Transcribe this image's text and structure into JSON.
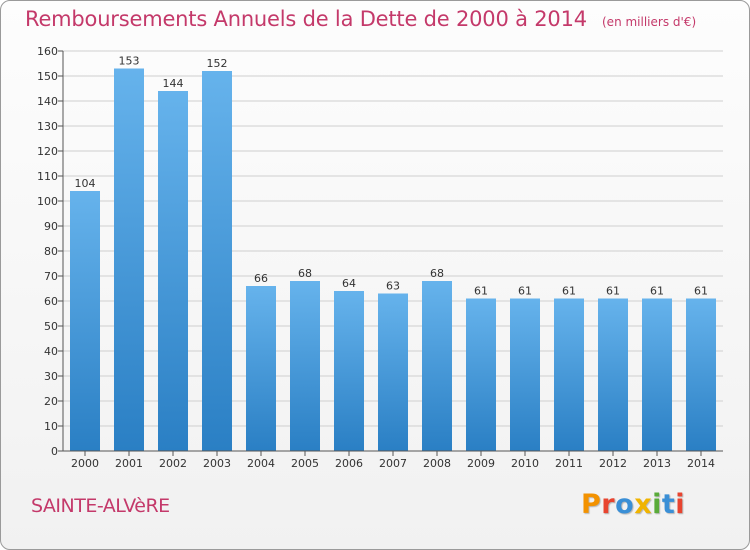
{
  "header": {
    "title": "Remboursements Annuels de la Dette de 2000 à 2014",
    "subtitle": "(en milliers d'€)"
  },
  "footer": {
    "commune": "SAINTE-ALVèRE",
    "logo_text": "Proxiti",
    "logo_colors": [
      "#f39200",
      "#e8442f",
      "#3a8fd6",
      "#f0b400",
      "#5aab3a",
      "#3a8fd6",
      "#e8442f"
    ]
  },
  "colors": {
    "bar_top": "#66b3ec",
    "bar_bottom": "#2a7fc4",
    "grid": "#cfcfcf",
    "text": "#333333"
  },
  "chart_data": {
    "type": "bar",
    "title": "Remboursements Annuels de la Dette de 2000 à 2014",
    "subtitle": "(en milliers d'€)",
    "categories": [
      "2000",
      "2001",
      "2002",
      "2003",
      "2004",
      "2005",
      "2006",
      "2007",
      "2008",
      "2009",
      "2010",
      "2011",
      "2012",
      "2013",
      "2014"
    ],
    "values": [
      104,
      153,
      144,
      152,
      66,
      68,
      64,
      63,
      68,
      61,
      61,
      61,
      61,
      61,
      61
    ],
    "ylim": [
      0,
      160
    ],
    "yticks": [
      0,
      10,
      20,
      30,
      40,
      50,
      60,
      70,
      80,
      90,
      100,
      110,
      120,
      130,
      140,
      150,
      160
    ],
    "grid": true,
    "legend": "none"
  }
}
